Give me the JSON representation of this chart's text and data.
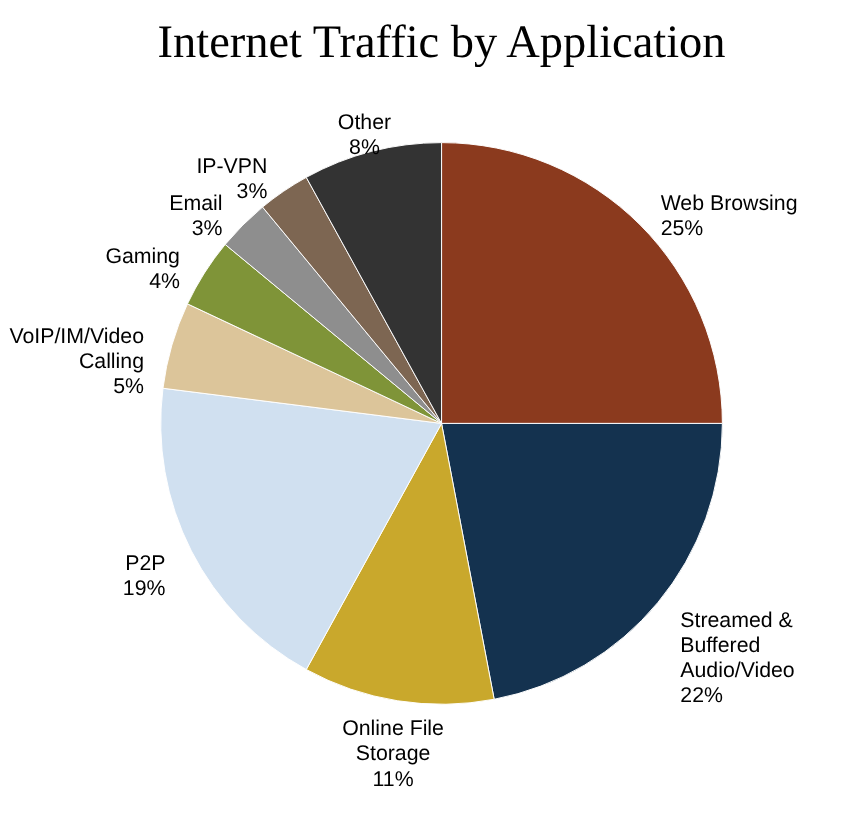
{
  "chart_data": {
    "type": "pie",
    "title": "Internet Traffic by Application",
    "categories": [
      "Web Browsing",
      "Streamed & Buffered Audio/Video",
      "Online File Storage",
      "P2P",
      "VoIP/IM/Video Calling",
      "Gaming",
      "Email",
      "IP-VPN",
      "Other"
    ],
    "values": [
      25,
      22,
      11,
      19,
      5,
      4,
      3,
      3,
      8
    ],
    "value_labels": [
      "25%",
      "22%",
      "11%",
      "19%",
      "5%",
      "4%",
      "3%",
      "3%",
      "8%"
    ],
    "colors": [
      "#8b3a1e",
      "#14324f",
      "#c9a82c",
      "#d0e0f0",
      "#dcc59a",
      "#7f9438",
      "#8e8e8e",
      "#7d6652",
      "#333333"
    ],
    "legend": false
  }
}
